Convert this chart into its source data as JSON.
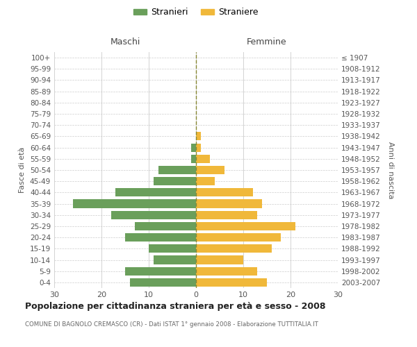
{
  "age_groups_bottom_to_top": [
    "0-4",
    "5-9",
    "10-14",
    "15-19",
    "20-24",
    "25-29",
    "30-34",
    "35-39",
    "40-44",
    "45-49",
    "50-54",
    "55-59",
    "60-64",
    "65-69",
    "70-74",
    "75-79",
    "80-84",
    "85-89",
    "90-94",
    "95-99",
    "100+"
  ],
  "birth_years_bottom_to_top": [
    "2003-2007",
    "1998-2002",
    "1993-1997",
    "1988-1992",
    "1983-1987",
    "1978-1982",
    "1973-1977",
    "1968-1972",
    "1963-1967",
    "1958-1962",
    "1953-1957",
    "1948-1952",
    "1943-1947",
    "1938-1942",
    "1933-1937",
    "1928-1932",
    "1923-1927",
    "1918-1922",
    "1913-1917",
    "1908-1912",
    "≤ 1907"
  ],
  "males_bottom_to_top": [
    14,
    15,
    9,
    10,
    15,
    13,
    18,
    26,
    17,
    9,
    8,
    1,
    1,
    0,
    0,
    0,
    0,
    0,
    0,
    0,
    0
  ],
  "females_bottom_to_top": [
    15,
    13,
    10,
    16,
    18,
    21,
    13,
    14,
    12,
    4,
    6,
    3,
    1,
    1,
    0,
    0,
    0,
    0,
    0,
    0,
    0
  ],
  "male_color": "#6a9f5b",
  "female_color": "#f0b83a",
  "background_color": "#ffffff",
  "grid_color": "#cccccc",
  "title": "Popolazione per cittadinanza straniera per età e sesso - 2008",
  "subtitle": "COMUNE DI BAGNOLO CREMASCO (CR) - Dati ISTAT 1° gennaio 2008 - Elaborazione TUTTITALIA.IT",
  "ylabel_left": "Fasce di età",
  "ylabel_right": "Anni di nascita",
  "label_maschi": "Maschi",
  "label_femmine": "Femmine",
  "legend_male": "Stranieri",
  "legend_female": "Straniere",
  "xlim": 30,
  "dpi": 100,
  "figsize": [
    6.0,
    5.0
  ]
}
